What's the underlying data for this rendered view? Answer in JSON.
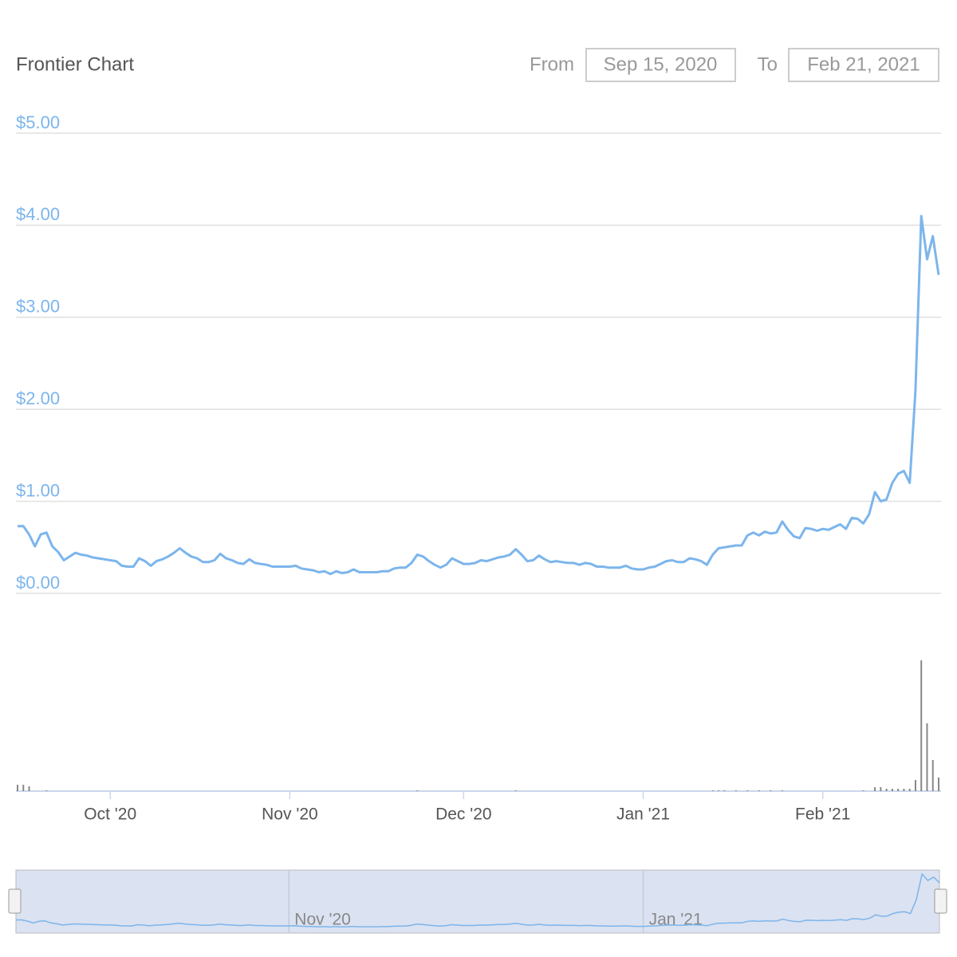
{
  "chart_data": {
    "type": "line",
    "title": "Frontier Chart",
    "range_from_label": "From",
    "range_from": "Sep 15, 2020",
    "range_to_label": "To",
    "range_to": "Feb 21, 2021",
    "series": [
      {
        "color": "#7cb5ec",
        "values": [
          0.73,
          0.73,
          0.64,
          0.51,
          0.64,
          0.66,
          0.51,
          0.45,
          0.36,
          0.4,
          0.44,
          0.42,
          0.41,
          0.39,
          0.38,
          0.37,
          0.36,
          0.35,
          0.3,
          0.29,
          0.29,
          0.38,
          0.35,
          0.3,
          0.35,
          0.37,
          0.4,
          0.44,
          0.49,
          0.44,
          0.4,
          0.38,
          0.34,
          0.34,
          0.36,
          0.43,
          0.38,
          0.36,
          0.33,
          0.32,
          0.37,
          0.33,
          0.32,
          0.31,
          0.29,
          0.29,
          0.29,
          0.29,
          0.3,
          0.27,
          0.26,
          0.25,
          0.23,
          0.24,
          0.21,
          0.24,
          0.22,
          0.23,
          0.26,
          0.23,
          0.23,
          0.23,
          0.23,
          0.24,
          0.24,
          0.27,
          0.28,
          0.28,
          0.33,
          0.42,
          0.4,
          0.35,
          0.31,
          0.28,
          0.31,
          0.38,
          0.35,
          0.32,
          0.32,
          0.33,
          0.36,
          0.35,
          0.37,
          0.39,
          0.4,
          0.42,
          0.48,
          0.42,
          0.35,
          0.36,
          0.41,
          0.37,
          0.34,
          0.35,
          0.34,
          0.33,
          0.33,
          0.31,
          0.33,
          0.32,
          0.29,
          0.29,
          0.28,
          0.28,
          0.28,
          0.3,
          0.27,
          0.26,
          0.26,
          0.28,
          0.29,
          0.32,
          0.35,
          0.36,
          0.34,
          0.34,
          0.38,
          0.37,
          0.35,
          0.31,
          0.42,
          0.49,
          0.5,
          0.51,
          0.52,
          0.52,
          0.63,
          0.66,
          0.63,
          0.67,
          0.65,
          0.66,
          0.78,
          0.69,
          0.62,
          0.6,
          0.71,
          0.7,
          0.68,
          0.7,
          0.69,
          0.72,
          0.75,
          0.7,
          0.82,
          0.81,
          0.76,
          0.86,
          1.1,
          1.0,
          1.02,
          1.2,
          1.3,
          1.33,
          1.2,
          2.2,
          4.1,
          3.63,
          3.88,
          3.46
        ]
      }
    ],
    "volumes": [
      8,
      8,
      6,
      0,
      0,
      1,
      0,
      0,
      0,
      0,
      0,
      0,
      0,
      0,
      0,
      0,
      0,
      0,
      0,
      0,
      0,
      0,
      0,
      0,
      0,
      0,
      0,
      0,
      0,
      0,
      0,
      0,
      0,
      0,
      0,
      0,
      0,
      0,
      0,
      0,
      0,
      0,
      0,
      0,
      0,
      0,
      0,
      0,
      0,
      0,
      0,
      0,
      0,
      0,
      0,
      0,
      0,
      0,
      0,
      0,
      0,
      0,
      0,
      0,
      0,
      0,
      0,
      0,
      0,
      1,
      0,
      0,
      0,
      0,
      0,
      0,
      0,
      0,
      0,
      0,
      0,
      0,
      0,
      0,
      0,
      0,
      1,
      0,
      0,
      0,
      0,
      0,
      0,
      0,
      0,
      0,
      0,
      0,
      0,
      0,
      0,
      0,
      0,
      0,
      0,
      0,
      0,
      0,
      0,
      0,
      0,
      0,
      0,
      0,
      0,
      0,
      0,
      0,
      0,
      0,
      1,
      1,
      1,
      0,
      1,
      0,
      1,
      0,
      1,
      0,
      1,
      0,
      1,
      0,
      0,
      0,
      0,
      0,
      0,
      0,
      0,
      0,
      0,
      0,
      0,
      0,
      1,
      0,
      5,
      5,
      3,
      3,
      3,
      3,
      3,
      14,
      164,
      85,
      39,
      17
    ],
    "volume_color": "#888888",
    "volume_ylim": [
      0,
      170
    ],
    "xlim": [
      0,
      159
    ],
    "xticks": [
      {
        "value": 16,
        "label": "Oct '20"
      },
      {
        "value": 47,
        "label": "Nov '20"
      },
      {
        "value": 77,
        "label": "Dec '20"
      },
      {
        "value": 108,
        "label": "Jan '21"
      },
      {
        "value": 139,
        "label": "Feb '21"
      }
    ],
    "ylim": [
      0,
      5
    ],
    "yticks": [
      {
        "value": 0,
        "label": "$0.00"
      },
      {
        "value": 1,
        "label": "$1.00"
      },
      {
        "value": 2,
        "label": "$2.00"
      },
      {
        "value": 3,
        "label": "$3.00"
      },
      {
        "value": 4,
        "label": "$4.00"
      },
      {
        "value": 5,
        "label": "$5.00"
      }
    ],
    "grid": true
  }
}
